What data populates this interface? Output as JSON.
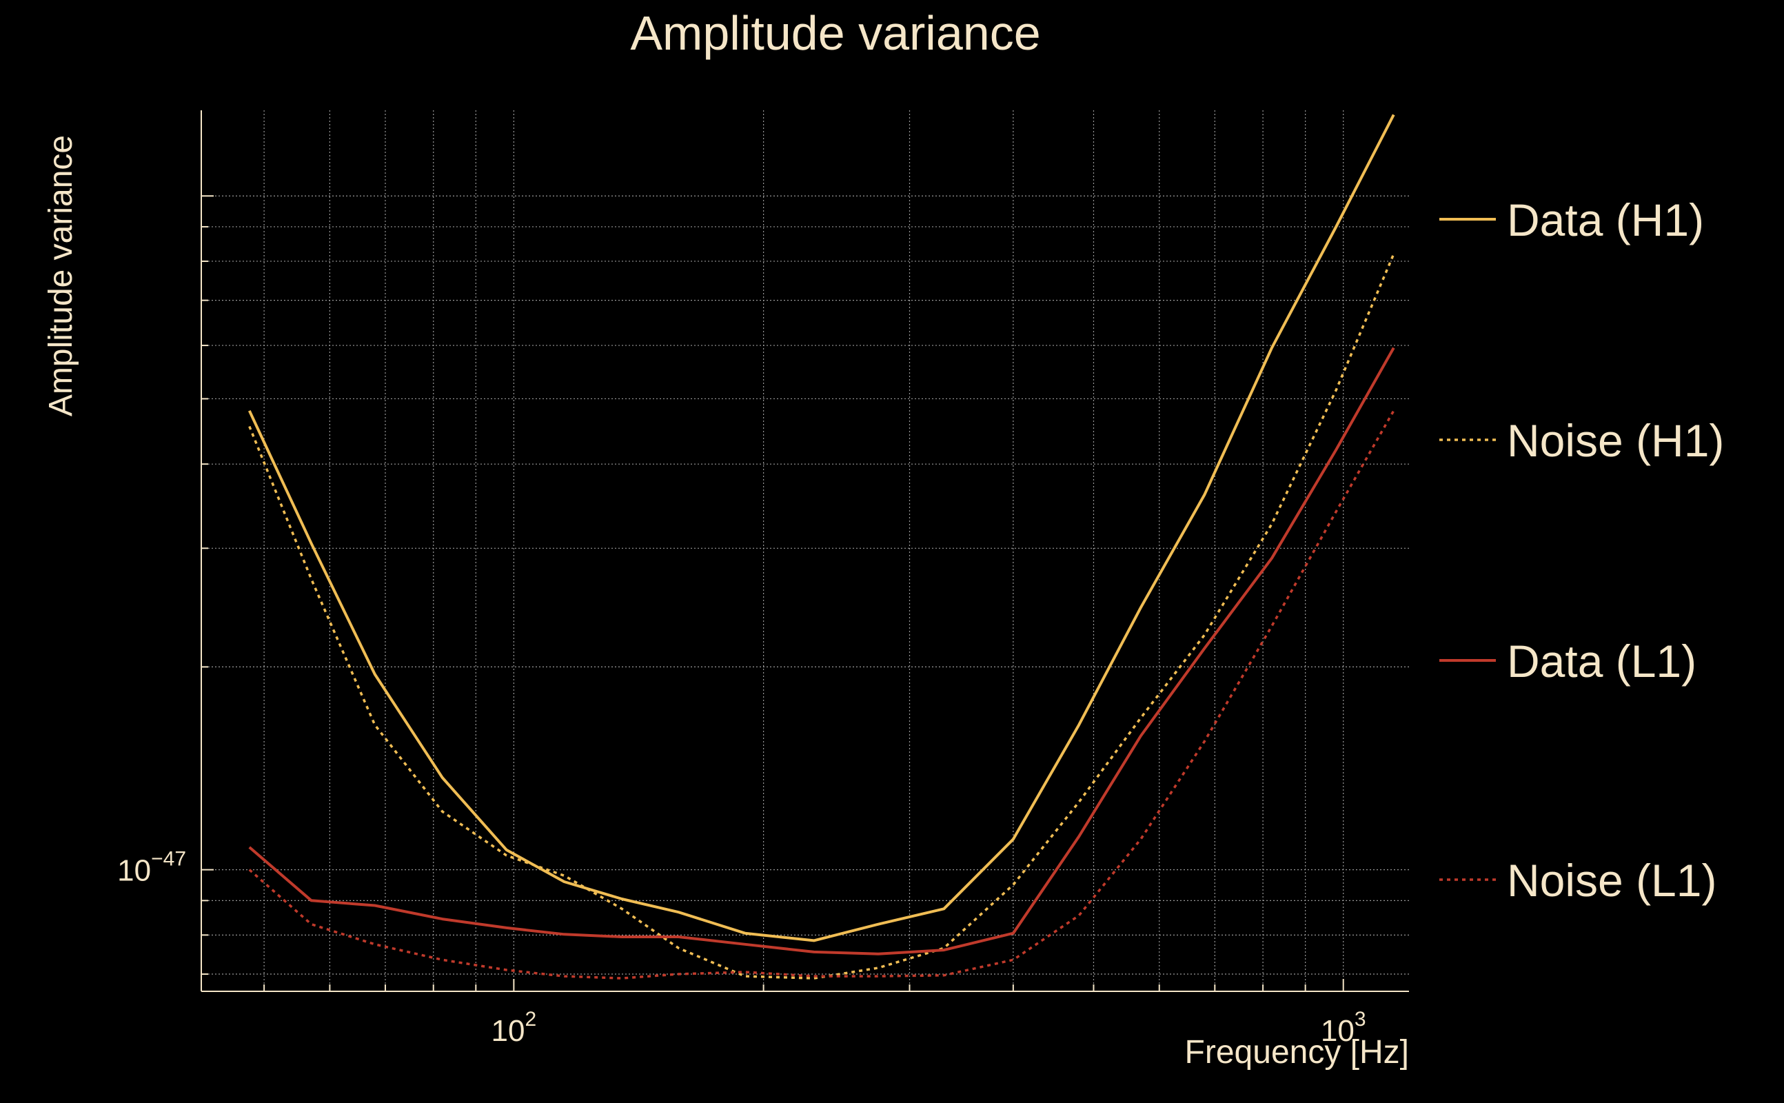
{
  "chart_data": {
    "type": "line",
    "title": "Amplitude variance",
    "xlabel": "Frequency [Hz]",
    "ylabel": "Amplitude variance",
    "x_scale": "log",
    "y_scale": "log",
    "xlim": [
      42,
      1200
    ],
    "ylim": [
      6.6e-48,
      1.34e-46
    ],
    "x_ticks": [
      {
        "value": 100,
        "base": "10",
        "exp": "2"
      },
      {
        "value": 1000,
        "base": "10",
        "exp": "3"
      }
    ],
    "y_ticks": [
      {
        "value": 1e-47,
        "base": "10",
        "exp": "−47"
      }
    ],
    "grid": true,
    "legend_position": "right",
    "colors": {
      "background": "#000000",
      "text": "#f5e6c8",
      "grid": "#9a9a9a",
      "h1": "#f0bd54",
      "l1": "#c03a2b"
    },
    "series": [
      {
        "name": "Data (H1)",
        "color": "#f0bd54",
        "dash": "solid",
        "x": [
          48,
          57,
          68,
          82,
          98,
          115,
          135,
          158,
          190,
          230,
          275,
          330,
          400,
          480,
          570,
          680,
          820,
          980,
          1150
        ],
        "y": [
          4.8e-47,
          3.05e-47,
          1.95e-47,
          1.37e-47,
          1.07e-47,
          9.6e-48,
          9.05e-48,
          8.65e-48,
          8.05e-48,
          7.85e-48,
          8.3e-48,
          8.75e-48,
          1.11e-47,
          1.64e-47,
          2.45e-47,
          3.6e-47,
          5.95e-47,
          9e-47,
          1.32e-46
        ]
      },
      {
        "name": "Noise (H1)",
        "color": "#f0bd54",
        "dash": "dotted",
        "x": [
          48,
          57,
          68,
          82,
          98,
          115,
          135,
          158,
          190,
          230,
          275,
          330,
          400,
          480,
          570,
          680,
          820,
          980,
          1150
        ],
        "y": [
          4.55e-47,
          2.7e-47,
          1.64e-47,
          1.22e-47,
          1.05e-47,
          9.8e-48,
          8.75e-48,
          7.65e-48,
          6.95e-48,
          6.9e-48,
          7.15e-48,
          7.65e-48,
          9.5e-48,
          1.26e-47,
          1.68e-47,
          2.23e-47,
          3.26e-47,
          5.15e-47,
          8.2e-47
        ]
      },
      {
        "name": "Data (L1)",
        "color": "#c03a2b",
        "dash": "solid",
        "x": [
          48,
          57,
          68,
          82,
          98,
          115,
          135,
          158,
          190,
          230,
          275,
          330,
          400,
          480,
          570,
          680,
          820,
          980,
          1150
        ],
        "y": [
          1.08e-47,
          9e-48,
          8.85e-48,
          8.45e-48,
          8.2e-48,
          8.02e-48,
          7.95e-48,
          7.95e-48,
          7.75e-48,
          7.55e-48,
          7.5e-48,
          7.6e-48,
          8.05e-48,
          1.12e-47,
          1.58e-47,
          2.13e-47,
          2.9e-47,
          4.2e-47,
          5.95e-47
        ]
      },
      {
        "name": "Noise (L1)",
        "color": "#c03a2b",
        "dash": "dotted",
        "x": [
          48,
          57,
          68,
          82,
          98,
          115,
          135,
          158,
          190,
          230,
          275,
          330,
          400,
          480,
          570,
          680,
          820,
          980,
          1150
        ],
        "y": [
          1e-47,
          8.3e-48,
          7.75e-48,
          7.35e-48,
          7.1e-48,
          6.95e-48,
          6.9e-48,
          7e-48,
          7.05e-48,
          6.95e-48,
          6.95e-48,
          6.97e-48,
          7.35e-48,
          8.55e-48,
          1.11e-47,
          1.55e-47,
          2.3e-47,
          3.4e-47,
          4.8e-47
        ]
      }
    ]
  }
}
